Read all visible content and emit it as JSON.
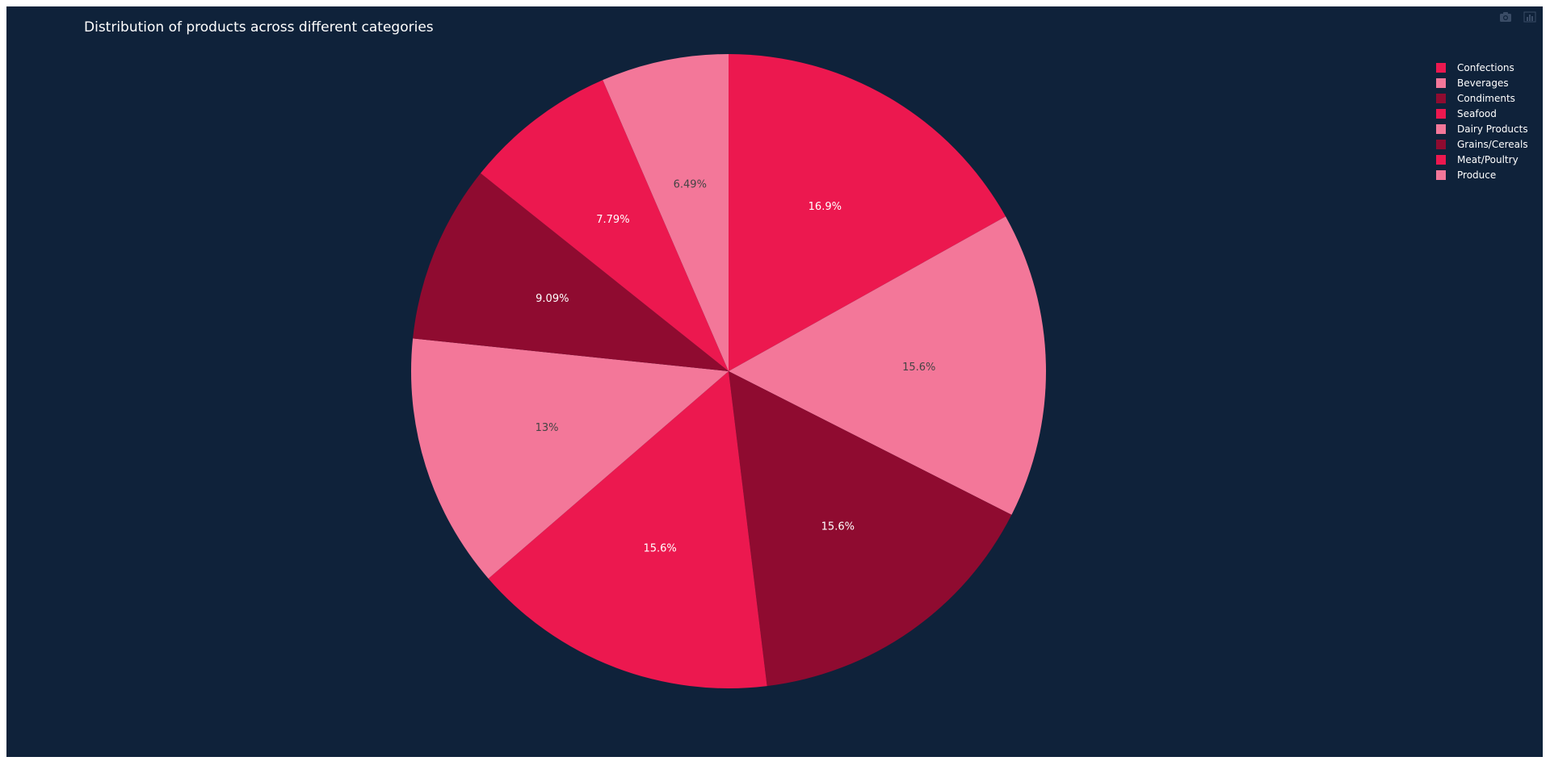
{
  "chart_data": {
    "type": "pie",
    "title": "Distribution of products across different categories",
    "categories": [
      "Confections",
      "Beverages",
      "Condiments",
      "Seafood",
      "Dairy Products",
      "Grains/Cereals",
      "Meat/Poultry",
      "Produce"
    ],
    "values": [
      16.9,
      15.6,
      15.6,
      15.6,
      13.0,
      9.09,
      7.79,
      6.49
    ],
    "labels": [
      "16.9%",
      "15.6%",
      "15.6%",
      "15.6%",
      "13%",
      "9.09%",
      "7.79%",
      "6.49%"
    ],
    "colors": [
      "#ec184f",
      "#f37799",
      "#8f0b30",
      "#ec184f",
      "#f37799",
      "#8f0b30",
      "#ec184f",
      "#f37799"
    ],
    "label_colors": [
      "#ffffff",
      "#444444",
      "#ffffff",
      "#ffffff",
      "#444444",
      "#ffffff",
      "#ffffff",
      "#444444"
    ],
    "direction": "counterclockwise",
    "start_angle": "12 o'clock",
    "legend_position": "top-right",
    "legend": {
      "items": [
        {
          "label": "Confections",
          "color": "#ec184f"
        },
        {
          "label": "Beverages",
          "color": "#f37799"
        },
        {
          "label": "Condiments",
          "color": "#8f0b30"
        },
        {
          "label": "Seafood",
          "color": "#ec184f"
        },
        {
          "label": "Dairy Products",
          "color": "#f37799"
        },
        {
          "label": "Grains/Cereals",
          "color": "#8f0b30"
        },
        {
          "label": "Meat/Poultry",
          "color": "#ec184f"
        },
        {
          "label": "Produce",
          "color": "#f37799"
        }
      ]
    }
  },
  "theme": {
    "background": "#0f223a"
  },
  "modebar": {
    "icons": [
      "camera-icon",
      "bar-chart-icon"
    ]
  }
}
